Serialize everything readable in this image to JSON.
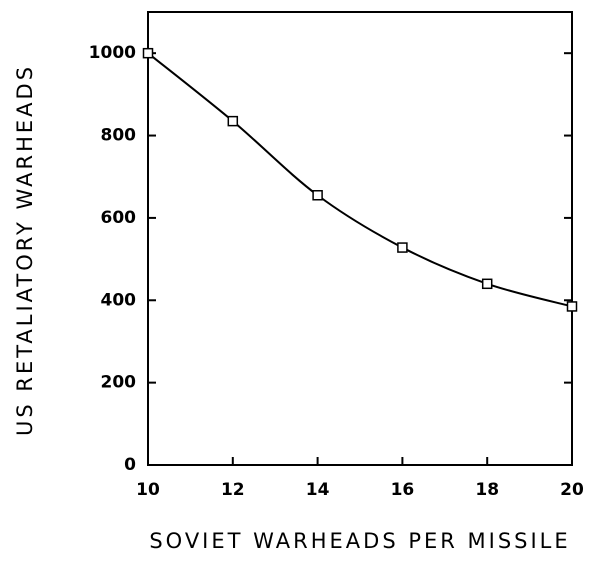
{
  "chart_data": {
    "type": "line",
    "x_label": "SOVIET WARHEADS PER MISSILE",
    "y_label": "US RETALIATORY WARHEADS",
    "x": [
      10,
      12,
      14,
      16,
      18,
      20
    ],
    "series": [
      {
        "color": "#000000",
        "values": [
          1000,
          835,
          655,
          528,
          440,
          385
        ]
      }
    ],
    "xlim": [
      10,
      20
    ],
    "xticks": [
      10,
      12,
      14,
      16,
      18,
      20
    ],
    "ylim": [
      0,
      1100
    ],
    "yticks": [
      0,
      200,
      400,
      600,
      800,
      1000
    ],
    "grid": false,
    "markers": "square"
  }
}
